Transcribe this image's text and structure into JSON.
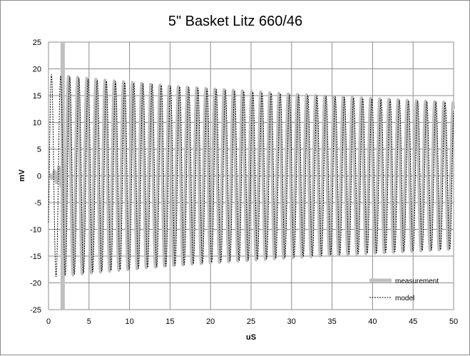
{
  "chart_data": {
    "type": "line",
    "title": "5\" Basket Litz 660/46",
    "xlabel": "uS",
    "ylabel": "mV",
    "xlim": [
      0,
      50
    ],
    "ylim": [
      -25,
      25
    ],
    "x_ticks": [
      "0",
      "5",
      "10",
      "15",
      "20",
      "25",
      "30",
      "35",
      "40",
      "45",
      "50"
    ],
    "y_ticks": [
      "25",
      "20",
      "15",
      "10",
      "5",
      "0",
      "-5",
      "-10",
      "-15",
      "-20",
      "-25"
    ],
    "grid": true,
    "legend_position": "bottom-right",
    "series": [
      {
        "name": "measurement",
        "style": "solid",
        "color": "#bfbfbf",
        "signal": "damped sinusoid, ~1.13 us period",
        "envelope": [
          {
            "x": 2,
            "amplitude": 18.7
          },
          {
            "x": 5,
            "amplitude": 18.2
          },
          {
            "x": 10,
            "amplitude": 17.5
          },
          {
            "x": 15,
            "amplitude": 16.8
          },
          {
            "x": 20,
            "amplitude": 16.3
          },
          {
            "x": 25,
            "amplitude": 15.8
          },
          {
            "x": 30,
            "amplitude": 15.3
          },
          {
            "x": 35,
            "amplitude": 14.9
          },
          {
            "x": 40,
            "amplitude": 14.5
          },
          {
            "x": 45,
            "amplitude": 14.1
          },
          {
            "x": 50,
            "amplitude": 13.7
          }
        ]
      },
      {
        "name": "model",
        "style": "dashed",
        "color": "#000000",
        "signal": "damped sinusoid, ~1.13 us period",
        "envelope": [
          {
            "x": 0,
            "amplitude": 19.0
          },
          {
            "x": 5,
            "amplitude": 18.0
          },
          {
            "x": 10,
            "amplitude": 17.4
          },
          {
            "x": 15,
            "amplitude": 16.8
          },
          {
            "x": 20,
            "amplitude": 16.2
          },
          {
            "x": 25,
            "amplitude": 15.7
          },
          {
            "x": 30,
            "amplitude": 15.2
          },
          {
            "x": 35,
            "amplitude": 14.8
          },
          {
            "x": 40,
            "amplitude": 14.4
          },
          {
            "x": 45,
            "amplitude": 14.0
          },
          {
            "x": 50,
            "amplitude": 13.7
          }
        ]
      }
    ]
  }
}
